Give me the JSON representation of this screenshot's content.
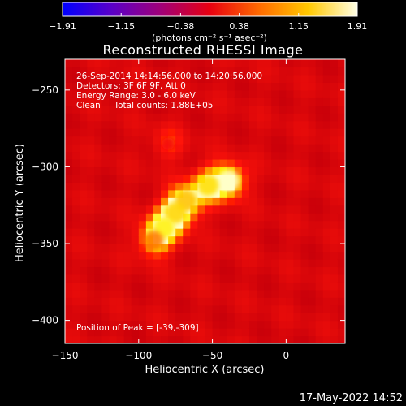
{
  "chart_data": {
    "type": "heatmap",
    "title": "Reconstructed RHESSI Image",
    "xlabel": "Heliocentric X (arcsec)",
    "ylabel": "Heliocentric Y (arcsec)",
    "xlim": [
      -150,
      40
    ],
    "ylim": [
      -415,
      -230
    ],
    "xticks": [
      -150,
      -100,
      -50,
      0
    ],
    "xtick_labels": [
      "−150",
      "−100",
      "−50",
      "0"
    ],
    "yticks": [
      -250,
      -300,
      -350,
      -400
    ],
    "ytick_labels": [
      "−250",
      "−300",
      "−350",
      "−400"
    ],
    "colorbar": {
      "min": -1.91,
      "max": 1.91,
      "ticks": [
        -1.91,
        -1.15,
        -0.38,
        0.38,
        1.15,
        1.91
      ],
      "tick_labels": [
        "−1.91",
        "−1.15",
        "−0.38",
        "0.38",
        "1.15",
        "1.91"
      ],
      "unit_label": "(photons cm⁻² s⁻¹ asec⁻²)",
      "colors": [
        "#0000ff",
        "#5a00c8",
        "#a00078",
        "#e80010",
        "#ff6a00",
        "#ffc800",
        "#ffffe6"
      ]
    },
    "annotations": [
      "26-Sep-2014 14:14:56.000 to 14:20:56.000",
      "Detectors: 3F 6F 9F, Att 0",
      "Energy Range: 3.0 - 6.0 keV",
      "Clean     Total counts: 1.88E+05"
    ],
    "peak_label": "Position of Peak = [-39,-309]",
    "sources": [
      {
        "x": -39,
        "y": -309,
        "intensity": 1.91
      },
      {
        "x": -53,
        "y": -312,
        "intensity": 1.6
      },
      {
        "x": -68,
        "y": -322,
        "intensity": 1.45
      },
      {
        "x": -75,
        "y": -330,
        "intensity": 1.55
      },
      {
        "x": -83,
        "y": -340,
        "intensity": 1.7
      },
      {
        "x": -90,
        "y": -348,
        "intensity": 1.1
      },
      {
        "x": -80,
        "y": -285,
        "intensity": 0.55
      }
    ]
  },
  "footer": {
    "timestamp": "17-May-2022 14:52"
  }
}
